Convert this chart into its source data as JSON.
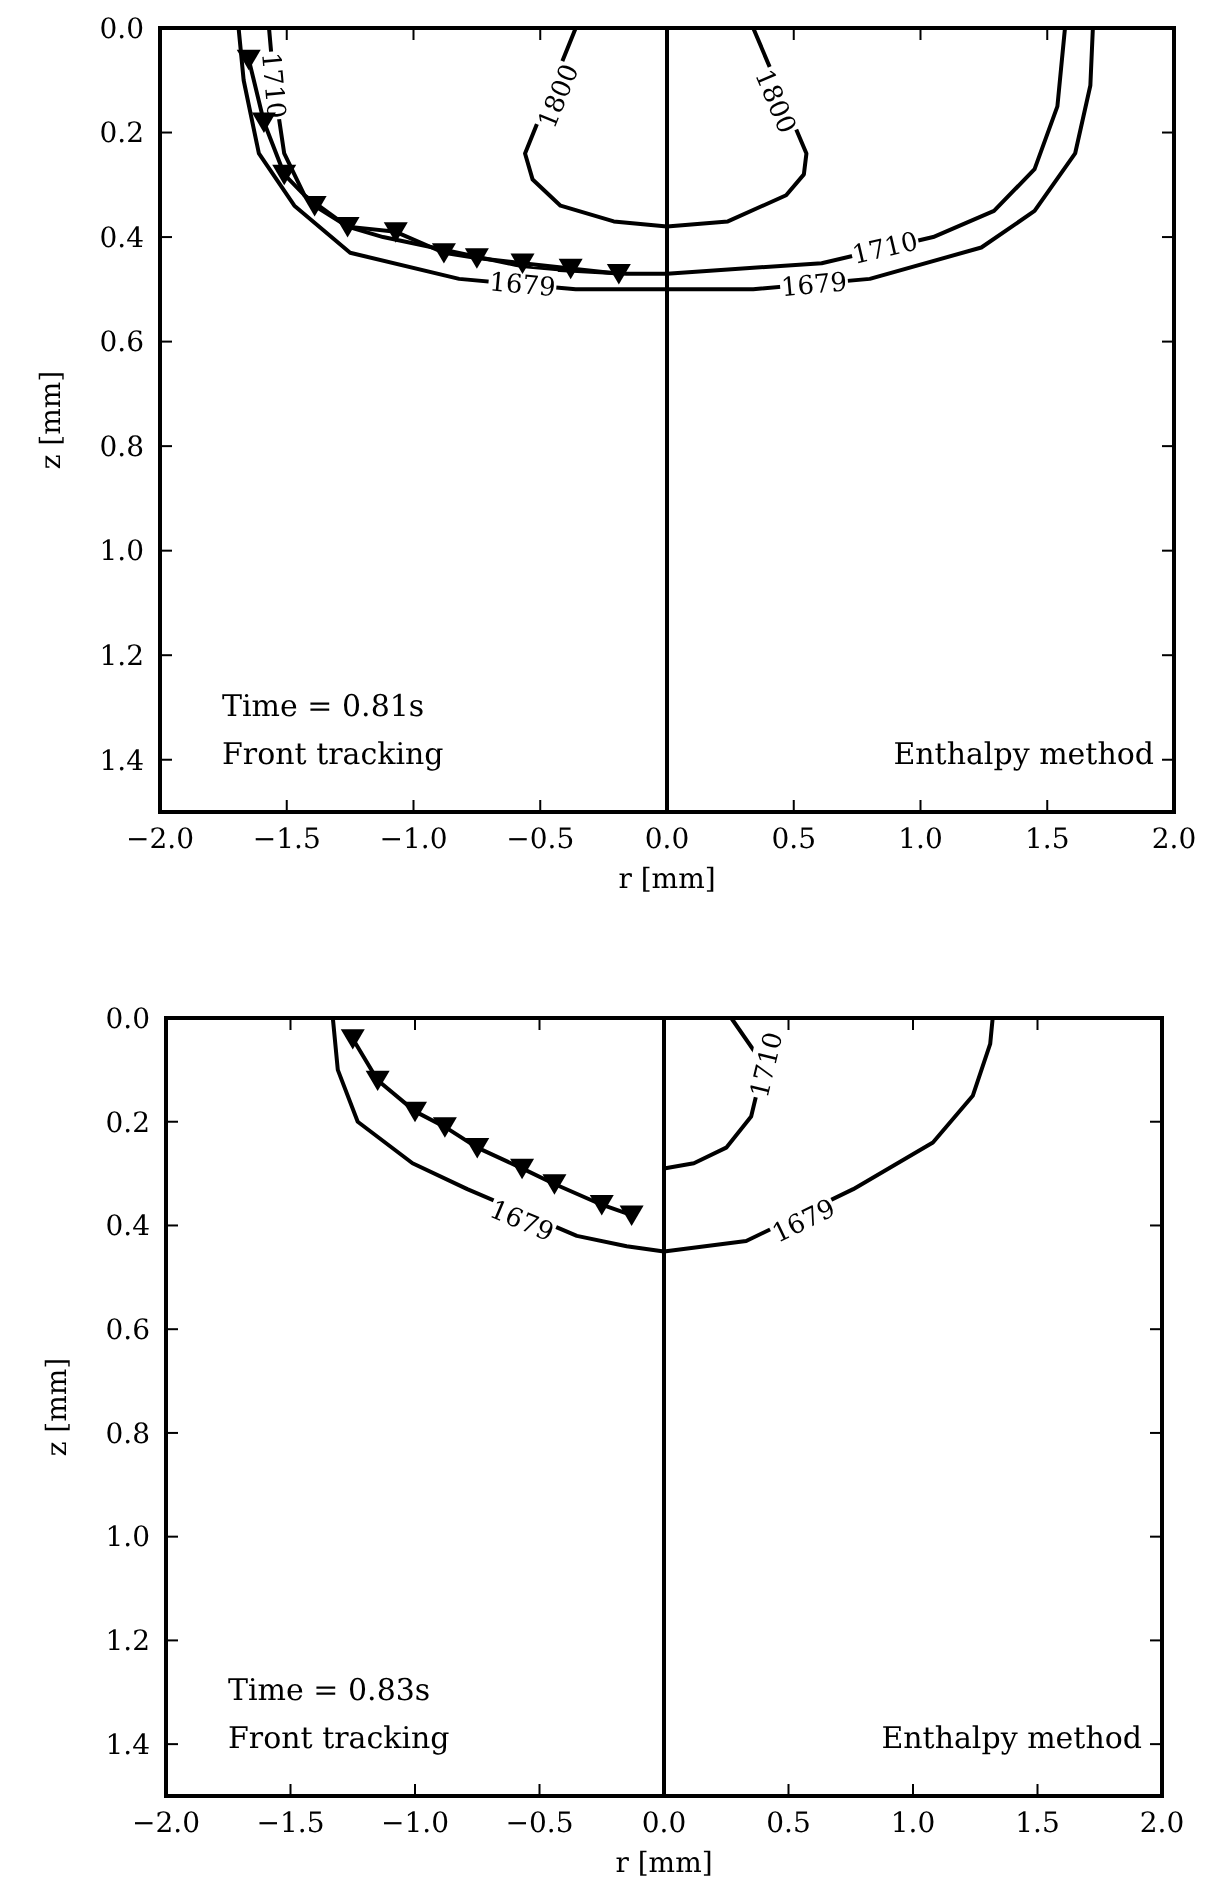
{
  "chart_data": [
    {
      "type": "line",
      "xlabel": "r [mm]",
      "ylabel": "z [mm]",
      "xlim": [
        -2,
        2
      ],
      "ylim": [
        1.5,
        0
      ],
      "xticks": [
        {
          "value": -2,
          "label": "−2.0"
        },
        {
          "value": -1.5,
          "label": "−1.5"
        },
        {
          "value": -1,
          "label": "−1.0"
        },
        {
          "value": -0.5,
          "label": "−0.5"
        },
        {
          "value": 0,
          "label": "0.0"
        },
        {
          "value": 0.5,
          "label": "0.5"
        },
        {
          "value": 1,
          "label": "1.0"
        },
        {
          "value": 1.5,
          "label": "1.5"
        },
        {
          "value": 2,
          "label": "2.0"
        }
      ],
      "yticks": [
        {
          "value": 0,
          "label": "0.0"
        },
        {
          "value": 0.2,
          "label": "0.2"
        },
        {
          "value": 0.4,
          "label": "0.4"
        },
        {
          "value": 0.6,
          "label": "0.6"
        },
        {
          "value": 0.8,
          "label": "0.8"
        },
        {
          "value": 1,
          "label": "1.0"
        },
        {
          "value": 1.2,
          "label": "1.2"
        },
        {
          "value": 1.4,
          "label": "1.4"
        }
      ],
      "grid": false,
      "line_style": "solid",
      "ref_lines": [
        {
          "axis": "x",
          "value": 0,
          "color": "#000000"
        }
      ],
      "series": [
        {
          "color": "#000000",
          "marker": "none",
          "x": [
            -1.69,
            -1.67,
            -1.61,
            -1.47,
            -1.25,
            -0.82,
            -0.36,
            0,
            0.34,
            0.8,
            1.24,
            1.45,
            1.61,
            1.67,
            1.68
          ],
          "values": [
            0,
            0.1,
            0.24,
            0.34,
            0.43,
            0.48,
            0.5,
            0.5,
            0.5,
            0.48,
            0.42,
            0.35,
            0.24,
            0.11,
            0
          ]
        },
        {
          "color": "#000000",
          "marker": "none",
          "x": [
            -1.57,
            -1.55,
            -1.51,
            -1.43,
            -1.26,
            -1.12,
            -0.53,
            -0.16,
            0,
            0.61,
            1.05,
            1.29,
            1.45,
            1.54,
            1.57
          ],
          "values": [
            0,
            0.11,
            0.24,
            0.32,
            0.38,
            0.4,
            0.46,
            0.47,
            0.47,
            0.45,
            0.4,
            0.35,
            0.27,
            0.15,
            0
          ]
        },
        {
          "color": "#000000",
          "marker": "none",
          "x": [
            -0.36,
            -0.56,
            -0.53,
            -0.42,
            -0.21,
            0,
            0.24,
            0.47,
            0.54,
            0.55,
            0.34
          ],
          "values": [
            0,
            0.24,
            0.29,
            0.34,
            0.37,
            0.38,
            0.37,
            0.32,
            0.28,
            0.24,
            0
          ]
        },
        {
          "color": "#000000",
          "marker": "triangle",
          "x": [
            -1.65,
            -1.59,
            -1.51,
            -1.39,
            -1.26,
            -1.07,
            -0.88,
            -0.75,
            -0.57,
            -0.38,
            -0.19
          ],
          "values": [
            0.06,
            0.18,
            0.28,
            0.34,
            0.38,
            0.39,
            0.43,
            0.44,
            0.45,
            0.46,
            0.47
          ]
        }
      ],
      "annotations": [
        "Time = 0.81s",
        "Front tracking",
        "Enthalpy method",
        {
          "text": "1800",
          "x": -0.43,
          "y": 0.13
        },
        {
          "text": "1800",
          "x": 0.43,
          "y": 0.14
        },
        {
          "text": "1710",
          "x": -1.55,
          "y": 0.11
        },
        {
          "text": "1679",
          "x": -0.57,
          "y": 0.49
        },
        {
          "text": "1679",
          "x": 0.58,
          "y": 0.49
        },
        {
          "text": "1710",
          "x": 0.86,
          "y": 0.42
        }
      ]
    },
    {
      "type": "line",
      "xlabel": "r [mm]",
      "ylabel": "z [mm]",
      "xlim": [
        -2,
        2
      ],
      "ylim": [
        1.5,
        0
      ],
      "xticks": [
        {
          "value": -2,
          "label": "−2.0"
        },
        {
          "value": -1.5,
          "label": "−1.5"
        },
        {
          "value": -1,
          "label": "−1.0"
        },
        {
          "value": -0.5,
          "label": "−0.5"
        },
        {
          "value": 0,
          "label": "0.0"
        },
        {
          "value": 0.5,
          "label": "0.5"
        },
        {
          "value": 1,
          "label": "1.0"
        },
        {
          "value": 1.5,
          "label": "1.5"
        },
        {
          "value": 2,
          "label": "2.0"
        }
      ],
      "yticks": [
        {
          "value": 0,
          "label": "0.0"
        },
        {
          "value": 0.2,
          "label": "0.2"
        },
        {
          "value": 0.4,
          "label": "0.4"
        },
        {
          "value": 0.6,
          "label": "0.6"
        },
        {
          "value": 0.8,
          "label": "0.8"
        },
        {
          "value": 1,
          "label": "1.0"
        },
        {
          "value": 1.2,
          "label": "1.2"
        },
        {
          "value": 1.4,
          "label": "1.4"
        }
      ],
      "grid": false,
      "line_style": "solid",
      "ref_lines": [
        {
          "axis": "x",
          "value": 0,
          "color": "#000000"
        }
      ],
      "series": [
        {
          "color": "#000000",
          "marker": "none",
          "x": [
            -1.33,
            -1.31,
            -1.23,
            -1.01,
            -0.79,
            -0.35,
            -0.15,
            0,
            0.33,
            0.76,
            1.08,
            1.24,
            1.31,
            1.32
          ],
          "values": [
            0,
            0.1,
            0.2,
            0.28,
            0.33,
            0.42,
            0.44,
            0.45,
            0.43,
            0.33,
            0.24,
            0.15,
            0.05,
            0
          ]
        },
        {
          "color": "#000000",
          "marker": "none",
          "x": [
            0,
            0.12,
            0.25,
            0.35,
            0.4,
            0.27
          ],
          "values": [
            0.29,
            0.28,
            0.25,
            0.19,
            0.09,
            0
          ]
        },
        {
          "color": "#000000",
          "marker": "triangle",
          "x": [
            -1.25,
            -1.15,
            -1,
            -0.88,
            -0.75,
            -0.57,
            -0.44,
            -0.25,
            -0.13
          ],
          "values": [
            0.04,
            0.12,
            0.18,
            0.21,
            0.25,
            0.29,
            0.32,
            0.36,
            0.38
          ]
        }
      ],
      "annotations": [
        "Time = 0.83s",
        "Front tracking",
        "Enthalpy method",
        {
          "text": "1710",
          "x": 0.41,
          "y": 0.09
        },
        {
          "text": "1679",
          "x": -0.57,
          "y": 0.39
        },
        {
          "text": "1679",
          "x": 0.56,
          "y": 0.39
        }
      ]
    }
  ]
}
